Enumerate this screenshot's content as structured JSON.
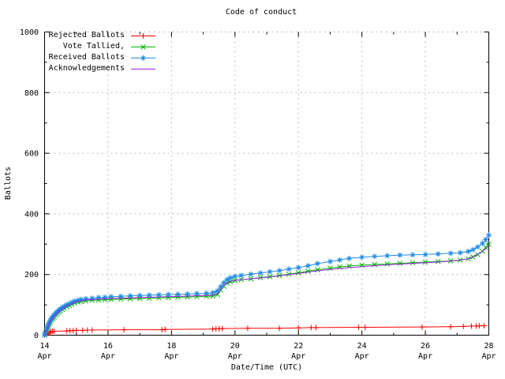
{
  "title": "Code of conduct",
  "xlabel": "Date/Time (UTC)",
  "ylabel": "Ballots",
  "legend": [
    {
      "label": "Rejected Ballots",
      "color": "#ff0000",
      "marker": "plus"
    },
    {
      "label": "Vote Tallied,",
      "color": "#00b400",
      "marker": "cross"
    },
    {
      "label": "Received Ballots",
      "color": "#1e8ae6",
      "marker": "star"
    },
    {
      "label": "Acknowledgements",
      "color": "#a020f0",
      "marker": "none"
    }
  ],
  "chart_data": {
    "type": "line",
    "title": "Code of conduct",
    "xlabel": "Date/Time (UTC)",
    "ylabel": "Ballots",
    "grid": true,
    "grid_color": "#bbbbbb",
    "xlim": [
      0,
      14
    ],
    "ylim": [
      0,
      1000
    ],
    "x_unit": "days since 14 Apr (UTC)",
    "x_major_ticks": [
      {
        "day": 0,
        "label": "14",
        "month": "Apr"
      },
      {
        "day": 2,
        "label": "16",
        "month": "Apr"
      },
      {
        "day": 4,
        "label": "18",
        "month": "Apr"
      },
      {
        "day": 6,
        "label": "20",
        "month": "Apr"
      },
      {
        "day": 8,
        "label": "22",
        "month": "Apr"
      },
      {
        "day": 10,
        "label": "24",
        "month": "Apr"
      },
      {
        "day": 12,
        "label": "26",
        "month": "Apr"
      },
      {
        "day": 14,
        "label": "28",
        "month": "Apr"
      }
    ],
    "x_minor_days": [
      1,
      3,
      5,
      7,
      9,
      11,
      13
    ],
    "y_ticks": [
      0,
      200,
      400,
      600,
      800,
      1000
    ],
    "y_minor_ticks": [
      100,
      300,
      500,
      700,
      900
    ],
    "series": [
      {
        "name": "Rejected Ballots",
        "color": "#ff0000",
        "marker": "plus",
        "points": [
          [
            0,
            0
          ],
          [
            0.05,
            3
          ],
          [
            0.1,
            6
          ],
          [
            0.15,
            9
          ],
          [
            0.2,
            11
          ],
          [
            0.25,
            13
          ],
          [
            0.3,
            13
          ],
          [
            0.7,
            14
          ],
          [
            0.8,
            15
          ],
          [
            0.9,
            15
          ],
          [
            1.0,
            16
          ],
          [
            1.2,
            16
          ],
          [
            1.35,
            17
          ],
          [
            1.5,
            17
          ],
          [
            2.5,
            18
          ],
          [
            3.7,
            18
          ],
          [
            3.8,
            19
          ],
          [
            5.3,
            20
          ],
          [
            5.4,
            21
          ],
          [
            5.5,
            21
          ],
          [
            5.6,
            22
          ],
          [
            6.4,
            23
          ],
          [
            7.4,
            23
          ],
          [
            8.0,
            24
          ],
          [
            8.4,
            25
          ],
          [
            8.55,
            25
          ],
          [
            9.9,
            26
          ],
          [
            10.1,
            26
          ],
          [
            11.9,
            27
          ],
          [
            12.8,
            28
          ],
          [
            13.2,
            29
          ],
          [
            13.45,
            30
          ],
          [
            13.6,
            30
          ],
          [
            13.7,
            31
          ],
          [
            13.85,
            31
          ]
        ]
      },
      {
        "name": "Vote Tallied,",
        "color": "#00b400",
        "marker": "cross",
        "points": [
          [
            0,
            0
          ],
          [
            0.03,
            5
          ],
          [
            0.06,
            13
          ],
          [
            0.09,
            21
          ],
          [
            0.12,
            29
          ],
          [
            0.15,
            36
          ],
          [
            0.18,
            42
          ],
          [
            0.22,
            49
          ],
          [
            0.26,
            55
          ],
          [
            0.3,
            60
          ],
          [
            0.35,
            66
          ],
          [
            0.4,
            71
          ],
          [
            0.45,
            76
          ],
          [
            0.5,
            80
          ],
          [
            0.56,
            85
          ],
          [
            0.62,
            89
          ],
          [
            0.7,
            94
          ],
          [
            0.78,
            98
          ],
          [
            0.86,
            102
          ],
          [
            0.95,
            106
          ],
          [
            1.05,
            109
          ],
          [
            1.15,
            111
          ],
          [
            1.3,
            113
          ],
          [
            1.5,
            115
          ],
          [
            1.7,
            116
          ],
          [
            1.9,
            117
          ],
          [
            2.1,
            118
          ],
          [
            2.4,
            119
          ],
          [
            2.7,
            120
          ],
          [
            3.0,
            121
          ],
          [
            3.3,
            122
          ],
          [
            3.6,
            123
          ],
          [
            3.9,
            124
          ],
          [
            4.2,
            125
          ],
          [
            4.5,
            126
          ],
          [
            4.8,
            127
          ],
          [
            5.1,
            128
          ],
          [
            5.3,
            129
          ],
          [
            5.45,
            134
          ],
          [
            5.55,
            148
          ],
          [
            5.65,
            161
          ],
          [
            5.75,
            171
          ],
          [
            5.85,
            176
          ],
          [
            6.0,
            180
          ],
          [
            6.2,
            183
          ],
          [
            6.5,
            186
          ],
          [
            6.8,
            190
          ],
          [
            7.1,
            193
          ],
          [
            7.4,
            197
          ],
          [
            7.7,
            201
          ],
          [
            8.0,
            206
          ],
          [
            8.3,
            211
          ],
          [
            8.6,
            216
          ],
          [
            9.0,
            221
          ],
          [
            9.3,
            225
          ],
          [
            9.6,
            228
          ],
          [
            10.0,
            231
          ],
          [
            10.4,
            233
          ],
          [
            10.8,
            235
          ],
          [
            11.2,
            237
          ],
          [
            11.6,
            239
          ],
          [
            12.0,
            241
          ],
          [
            12.4,
            243
          ],
          [
            12.8,
            245
          ],
          [
            13.1,
            248
          ],
          [
            13.35,
            252
          ],
          [
            13.5,
            258
          ],
          [
            13.65,
            266
          ],
          [
            13.8,
            277
          ],
          [
            13.9,
            289
          ],
          [
            14,
            300
          ]
        ]
      },
      {
        "name": "Received Ballots",
        "color": "#1e8ae6",
        "marker": "star",
        "points": [
          [
            0,
            0
          ],
          [
            0.03,
            8
          ],
          [
            0.06,
            18
          ],
          [
            0.09,
            27
          ],
          [
            0.12,
            35
          ],
          [
            0.15,
            42
          ],
          [
            0.18,
            48
          ],
          [
            0.22,
            55
          ],
          [
            0.26,
            61
          ],
          [
            0.3,
            66
          ],
          [
            0.35,
            72
          ],
          [
            0.4,
            77
          ],
          [
            0.45,
            82
          ],
          [
            0.5,
            86
          ],
          [
            0.56,
            91
          ],
          [
            0.62,
            95
          ],
          [
            0.7,
            100
          ],
          [
            0.78,
            104
          ],
          [
            0.86,
            108
          ],
          [
            0.95,
            112
          ],
          [
            1.05,
            115
          ],
          [
            1.15,
            118
          ],
          [
            1.3,
            120
          ],
          [
            1.5,
            122
          ],
          [
            1.7,
            124
          ],
          [
            1.9,
            125
          ],
          [
            2.1,
            127
          ],
          [
            2.4,
            128
          ],
          [
            2.7,
            130
          ],
          [
            3.0,
            131
          ],
          [
            3.3,
            132
          ],
          [
            3.6,
            133
          ],
          [
            3.9,
            134
          ],
          [
            4.2,
            135
          ],
          [
            4.5,
            136
          ],
          [
            4.8,
            137
          ],
          [
            5.1,
            138
          ],
          [
            5.3,
            140
          ],
          [
            5.45,
            146
          ],
          [
            5.55,
            160
          ],
          [
            5.65,
            173
          ],
          [
            5.75,
            183
          ],
          [
            5.85,
            189
          ],
          [
            6.0,
            194
          ],
          [
            6.2,
            197
          ],
          [
            6.5,
            201
          ],
          [
            6.8,
            205
          ],
          [
            7.1,
            209
          ],
          [
            7.4,
            213
          ],
          [
            7.7,
            218
          ],
          [
            8.0,
            223
          ],
          [
            8.3,
            229
          ],
          [
            8.6,
            236
          ],
          [
            9.0,
            243
          ],
          [
            9.3,
            248
          ],
          [
            9.6,
            253
          ],
          [
            10.0,
            257
          ],
          [
            10.4,
            260
          ],
          [
            10.8,
            262
          ],
          [
            11.2,
            264
          ],
          [
            11.6,
            265
          ],
          [
            12.0,
            266
          ],
          [
            12.4,
            268
          ],
          [
            12.8,
            270
          ],
          [
            13.1,
            272
          ],
          [
            13.35,
            276
          ],
          [
            13.5,
            282
          ],
          [
            13.65,
            291
          ],
          [
            13.8,
            303
          ],
          [
            13.9,
            315
          ],
          [
            14,
            330
          ]
        ]
      },
      {
        "name": "Acknowledgements",
        "color": "#a020f0",
        "marker": "none",
        "points": [
          [
            0,
            0
          ],
          [
            0.06,
            15
          ],
          [
            0.12,
            31
          ],
          [
            0.18,
            45
          ],
          [
            0.26,
            58
          ],
          [
            0.35,
            69
          ],
          [
            0.45,
            79
          ],
          [
            0.56,
            88
          ],
          [
            0.7,
            97
          ],
          [
            0.86,
            105
          ],
          [
            1.05,
            112
          ],
          [
            1.3,
            116
          ],
          [
            1.7,
            119
          ],
          [
            2.1,
            121
          ],
          [
            2.7,
            123
          ],
          [
            3.3,
            125
          ],
          [
            3.9,
            127
          ],
          [
            4.5,
            129
          ],
          [
            5.1,
            131
          ],
          [
            5.3,
            132
          ],
          [
            5.45,
            137
          ],
          [
            5.6,
            158
          ],
          [
            5.75,
            173
          ],
          [
            5.85,
            177
          ],
          [
            6.0,
            181
          ],
          [
            6.5,
            186
          ],
          [
            7.0,
            191
          ],
          [
            7.5,
            197
          ],
          [
            8.0,
            204
          ],
          [
            8.5,
            211
          ],
          [
            9.0,
            217
          ],
          [
            9.5,
            222
          ],
          [
            10.0,
            226
          ],
          [
            10.5,
            230
          ],
          [
            11.0,
            233
          ],
          [
            11.5,
            236
          ],
          [
            12.0,
            239
          ],
          [
            12.5,
            242
          ],
          [
            13.0,
            246
          ],
          [
            13.2,
            249
          ],
          [
            13.4,
            254
          ],
          [
            13.55,
            261
          ],
          [
            13.7,
            270
          ],
          [
            13.85,
            281
          ],
          [
            13.95,
            290
          ],
          [
            14,
            295
          ]
        ]
      }
    ],
    "legend_position": "top-left"
  }
}
